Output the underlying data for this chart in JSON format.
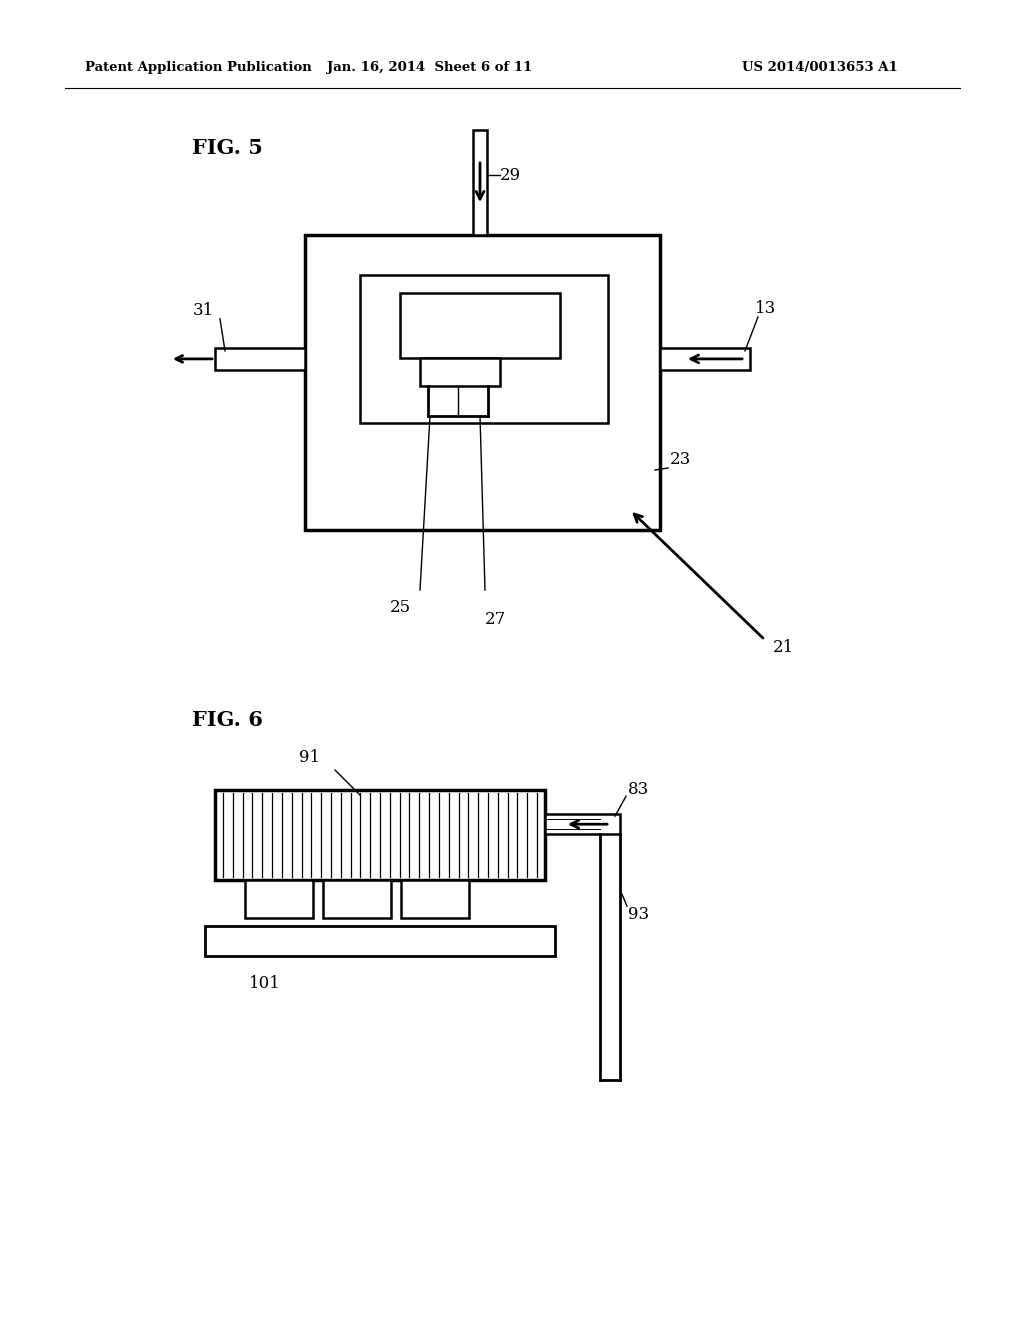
{
  "bg_color": "#ffffff",
  "text_color": "#000000",
  "header_left": "Patent Application Publication",
  "header_mid": "Jan. 16, 2014  Sheet 6 of 11",
  "header_right": "US 2014/0013653 A1",
  "fig5_label": "FIG. 5",
  "fig6_label": "FIG. 6",
  "line_color": "#000000",
  "line_width": 2.0,
  "thin_line": 1.0
}
